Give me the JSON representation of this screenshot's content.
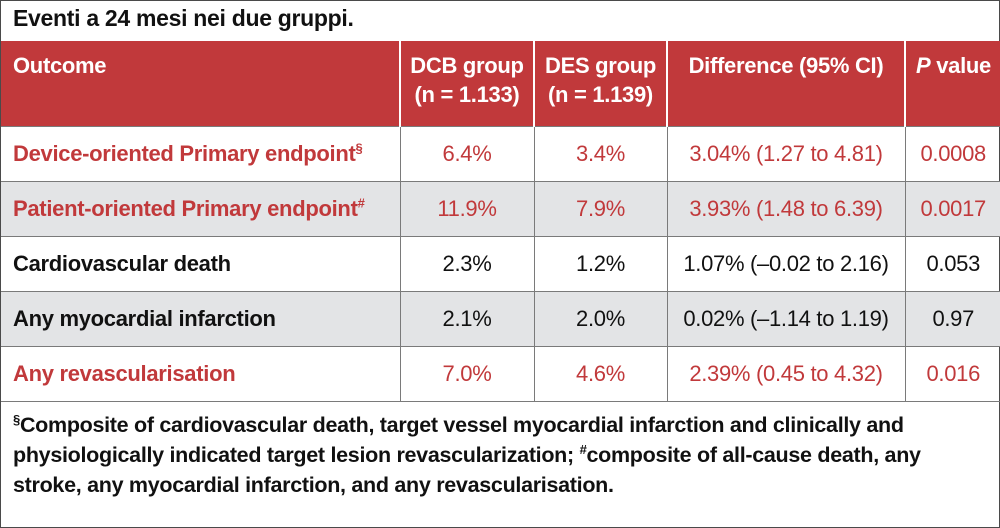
{
  "caption": "Eventi a 24 mesi nei due gruppi.",
  "header": {
    "outcome": "Outcome",
    "dcb_label": "DCB group",
    "dcb_n": "(n = 1.133)",
    "des_label": "DES group",
    "des_n": "(n = 1.139)",
    "difference": "Difference (95% CI)",
    "p_italic": "P",
    "p_rest": " value"
  },
  "rows": [
    {
      "outcome": "Device-oriented Primary endpoint",
      "mark": "§",
      "dcb": "6.4%",
      "des": "3.4%",
      "diff": "3.04% (1.27 to 4.81)",
      "p": "0.0008",
      "color": "#c1393b"
    },
    {
      "outcome": "Patient-oriented Primary endpoint",
      "mark": "#",
      "dcb": "11.9%",
      "des": "7.9%",
      "diff": "3.93% (1.48 to 6.39)",
      "p": "0.0017",
      "color": "#c1393b"
    },
    {
      "outcome": "Cardiovascular death",
      "mark": "",
      "dcb": "2.3%",
      "des": "1.2%",
      "diff": "1.07% (–0.02 to 2.16)",
      "p": "0.053",
      "color": "#111111"
    },
    {
      "outcome": "Any myocardial infarction",
      "mark": "",
      "dcb": "2.1%",
      "des": "2.0%",
      "diff": "0.02% (–1.14 to 1.19)",
      "p": "0.97",
      "color": "#111111"
    },
    {
      "outcome": "Any revascularisation",
      "mark": "",
      "dcb": "7.0%",
      "des": "4.6%",
      "diff": "2.39% (0.45 to 4.32)",
      "p": "0.016",
      "color": "#c1393b"
    }
  ],
  "footnote": {
    "mark1": "§",
    "text1": "Composite of cardiovascular death, target vessel myocardial infarction and clinically and physiologically indicated target lesion revascularization; ",
    "mark2": "#",
    "text2": "composite of all-cause death, any stroke, any myocardial infarction, and any revascularisation."
  },
  "colors": {
    "header_bg": "#c1393b",
    "accent_text": "#c1393b",
    "shade_row": "#e3e4e6"
  }
}
